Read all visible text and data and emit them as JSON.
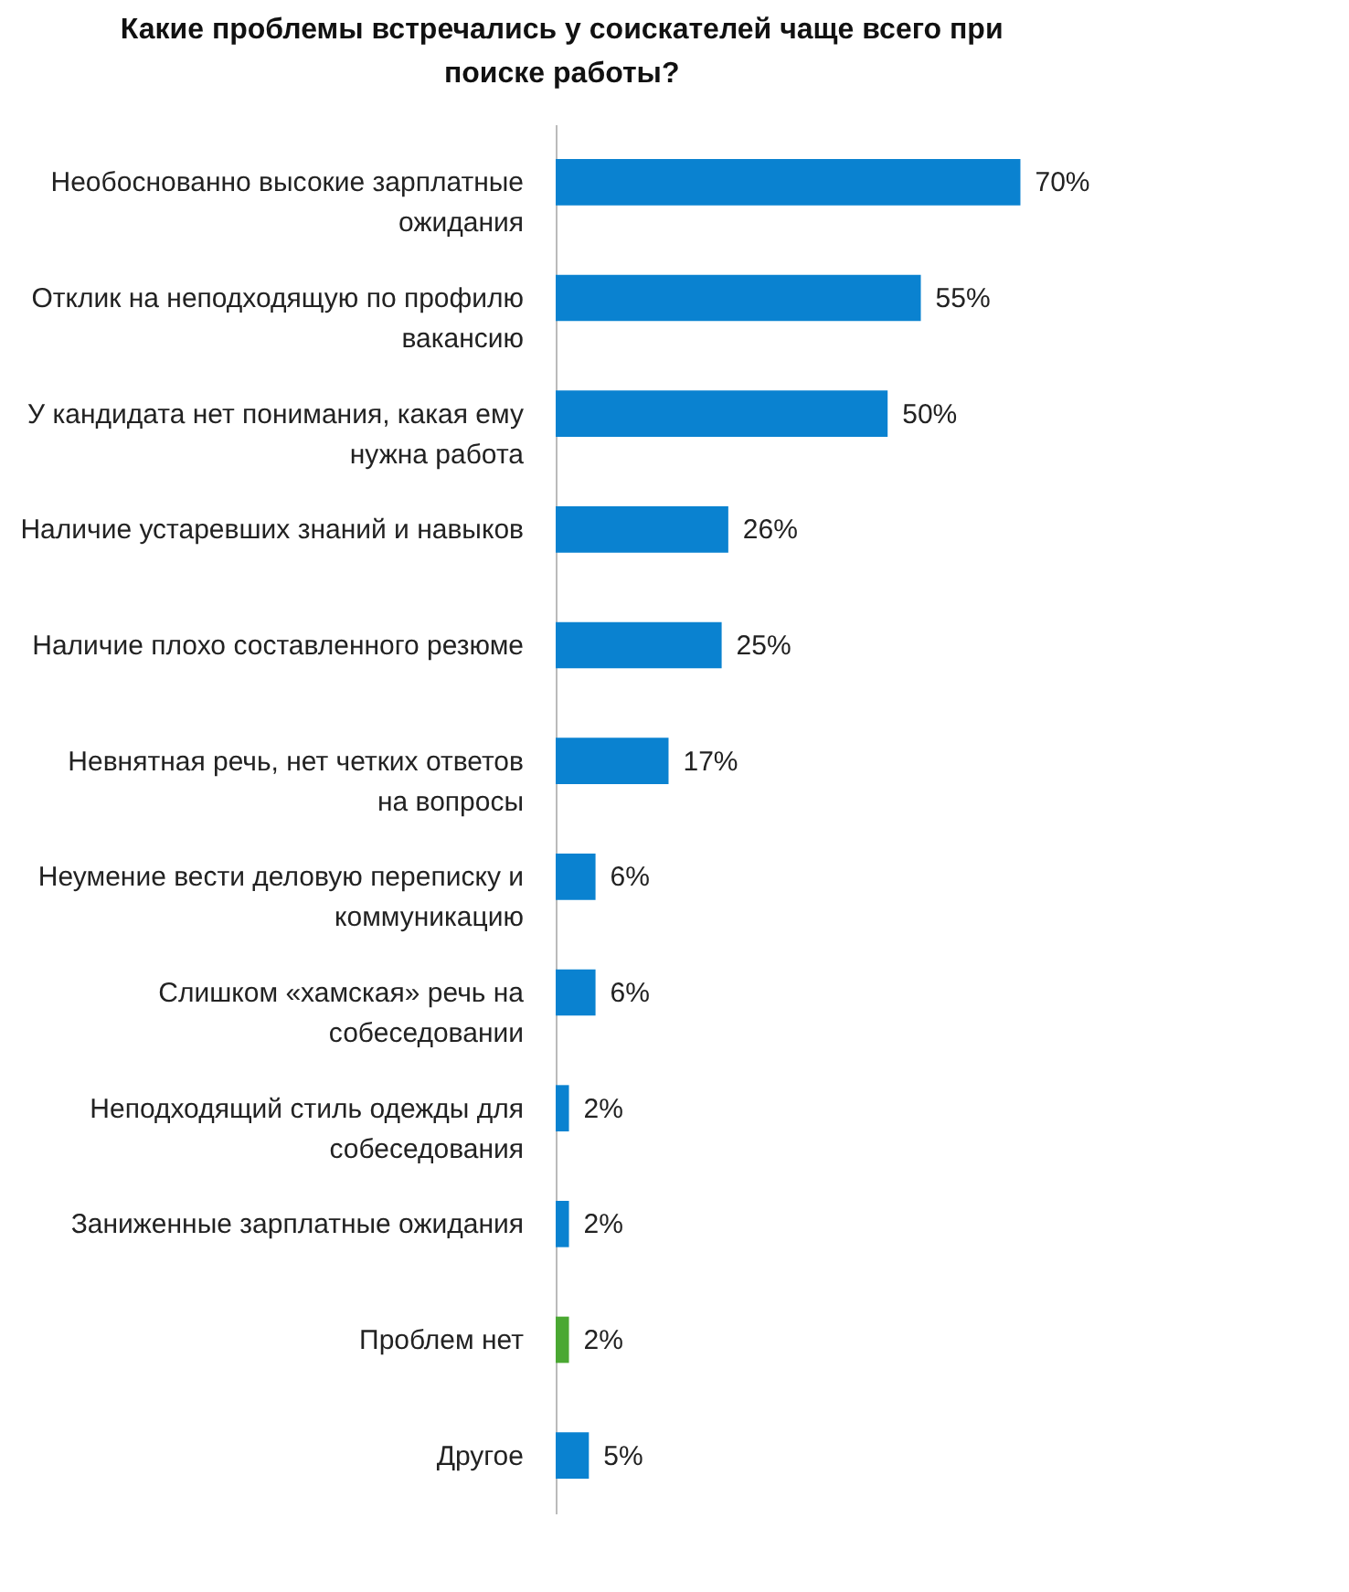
{
  "chart_data": {
    "type": "bar",
    "orientation": "horizontal",
    "title": "Какие проблемы встречались у соискателей чаще всего при поиске работы?",
    "categories": [
      "Необоснованно высокие зарплатные ожидания",
      "Отклик на неподходящую по профилю вакансию",
      "У кандидата нет понимания, какая ему нужна работа",
      "Наличие устаревших знаний и навыков",
      "Наличие плохо составленного резюме",
      "Невнятная речь, нет четких ответов на вопросы",
      "Неумение вести деловую переписку и коммуникацию",
      "Слишком «хамская» речь на собеседовании",
      "Неподходящий стиль одежды для собеседования",
      "Заниженные зарплатные ожидания",
      "Проблем нет",
      "Другое"
    ],
    "values": [
      70,
      55,
      50,
      26,
      25,
      17,
      6,
      6,
      2,
      2,
      2,
      5
    ],
    "colors": [
      "#0a82d0",
      "#0a82d0",
      "#0a82d0",
      "#0a82d0",
      "#0a82d0",
      "#0a82d0",
      "#0a82d0",
      "#0a82d0",
      "#0a82d0",
      "#0a82d0",
      "#4aa832",
      "#0a82d0"
    ],
    "value_labels": [
      "70%",
      "55%",
      "50%",
      "26%",
      "25%",
      "17%",
      "6%",
      "6%",
      "2%",
      "2%",
      "2%",
      "5%"
    ],
    "tick_labels": "y"
  }
}
